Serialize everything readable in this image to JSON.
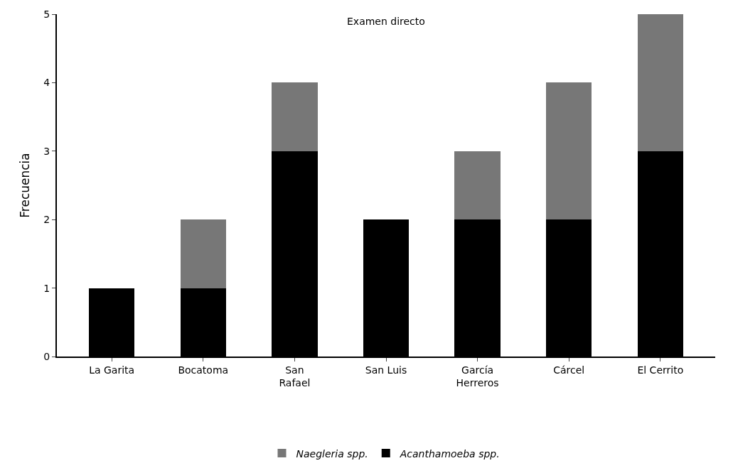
{
  "chart_data": {
    "type": "bar",
    "title": "Examen directo",
    "ylabel": "Frecuencia",
    "stacked": true,
    "categories": [
      "La Garita",
      "Bocatoma",
      "San\nRafael",
      "San Luis",
      "García\nHerreros",
      "Cárcel",
      "El Cerrito"
    ],
    "series": [
      {
        "name": "Acanthamoeba spp.",
        "color": "#000000",
        "values": [
          1,
          1,
          3,
          2,
          2,
          2,
          3
        ]
      },
      {
        "name": "Naegleria spp.",
        "color": "#777777",
        "values": [
          0,
          1,
          1,
          0,
          1,
          2,
          2
        ]
      }
    ],
    "ylim": [
      0,
      5
    ],
    "yticks": [
      0,
      1,
      2,
      3,
      4,
      5
    ],
    "grid": false,
    "legend": "bottom"
  }
}
